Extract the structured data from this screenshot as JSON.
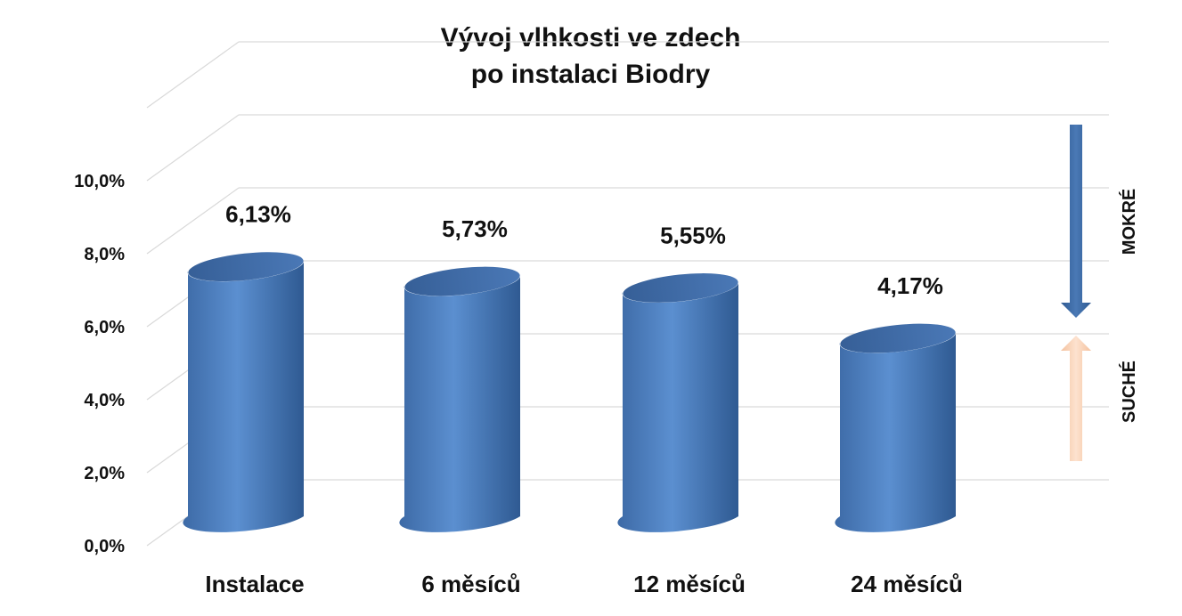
{
  "chart_data": {
    "type": "bar",
    "title_lines": [
      "Vývoj vlhkosti ve zdech",
      "po instalaci Biodry"
    ],
    "categories": [
      "Instalace",
      "6 měsíců",
      "12 měsíců",
      "24 měsíců"
    ],
    "values": [
      6.13,
      5.73,
      5.55,
      4.17
    ],
    "data_labels": [
      "6,13%",
      "5,73%",
      "5,55%",
      "4,17%"
    ],
    "y_ticks": [
      "0,0%",
      "2,0%",
      "4,0%",
      "6,0%",
      "8,0%",
      "10,0%"
    ],
    "ylim": [
      0,
      12
    ],
    "grid": true,
    "bar_color": "#4f81bd",
    "indicator": {
      "top_label": "MOKRÉ",
      "bottom_label": "SUCHÉ",
      "down_arrow_color": "#3a67a3",
      "up_arrow_color": "#f8cfb0"
    }
  }
}
